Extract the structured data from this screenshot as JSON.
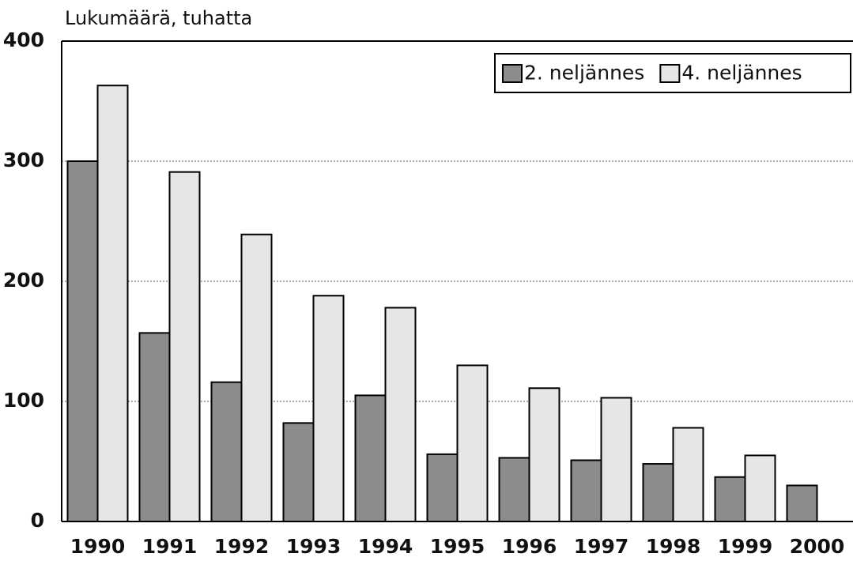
{
  "chart_data": {
    "type": "bar",
    "title": "Lukumäärä, tuhatta",
    "categories": [
      "1990",
      "1991",
      "1992",
      "1993",
      "1994",
      "1995",
      "1996",
      "1997",
      "1998",
      "1999",
      "2000"
    ],
    "series": [
      {
        "name": "2. neljännes",
        "color": "#8c8c8c",
        "values": [
          300,
          157,
          116,
          82,
          105,
          56,
          53,
          51,
          48,
          37,
          30
        ]
      },
      {
        "name": "4. neljännes",
        "color": "#e6e6e6",
        "values": [
          363,
          291,
          239,
          188,
          178,
          130,
          111,
          103,
          78,
          55,
          null
        ]
      }
    ],
    "ylim": [
      0,
      400
    ],
    "yticks": [
      0,
      100,
      200,
      300,
      400
    ],
    "grid": true,
    "legend": "upper right"
  }
}
